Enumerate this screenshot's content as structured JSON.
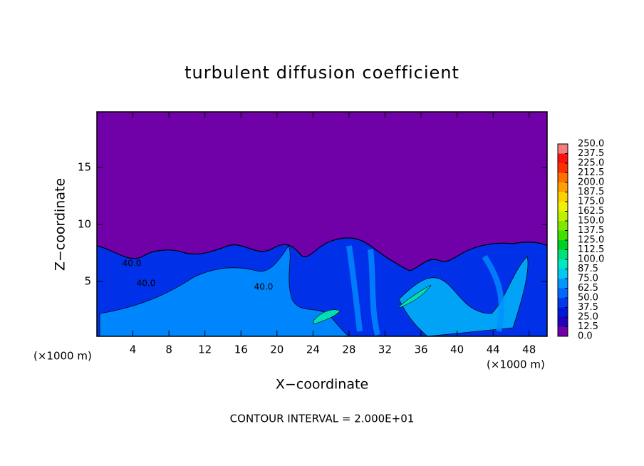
{
  "chart_data": {
    "type": "contour",
    "title": "turbulent diffusion coefficient",
    "x_label": "X−coordinate",
    "y_label": "Z−coordinate",
    "x_unit_left": "(×1000 m)",
    "x_unit_right": "(×1000 m)",
    "footnote": "CONTOUR INTERVAL = 2.000E+01",
    "xlim": [
      0,
      50
    ],
    "ylim": [
      0,
      20
    ],
    "xticks": [
      4,
      8,
      12,
      16,
      20,
      24,
      28,
      32,
      36,
      40,
      44,
      48
    ],
    "yticks": [
      5,
      10,
      15
    ],
    "contour_labels": [
      "40.0",
      "40.0",
      "40.0"
    ],
    "colorbar": {
      "levels": [
        {
          "value": 0,
          "label": "0.0"
        },
        {
          "value": 12.5,
          "label": "12.5"
        },
        {
          "value": 25,
          "label": "25.0"
        },
        {
          "value": 37.5,
          "label": "37.5"
        },
        {
          "value": 50,
          "label": "50.0"
        },
        {
          "value": 62.5,
          "label": "62.5"
        },
        {
          "value": 75,
          "label": "75.0"
        },
        {
          "value": 87.5,
          "label": "87.5"
        },
        {
          "value": 100,
          "label": "100.0"
        },
        {
          "value": 112.5,
          "label": "112.5"
        },
        {
          "value": 125,
          "label": "125.0"
        },
        {
          "value": 137.5,
          "label": "137.5"
        },
        {
          "value": 150,
          "label": "150.0"
        },
        {
          "value": 162.5,
          "label": "162.5"
        },
        {
          "value": 175,
          "label": "175.0"
        },
        {
          "value": 187.5,
          "label": "187.5"
        },
        {
          "value": 200,
          "label": "200.0"
        },
        {
          "value": 212.5,
          "label": "212.5"
        },
        {
          "value": 225,
          "label": "225.0"
        },
        {
          "value": 237.5,
          "label": "237.5"
        },
        {
          "value": 250,
          "label": "250.0"
        }
      ],
      "colors": [
        "#7000a8",
        "#2000b8",
        "#0018d8",
        "#0038f0",
        "#0068ff",
        "#0098ff",
        "#00c8f0",
        "#00e8c0",
        "#00e078",
        "#00d020",
        "#40e000",
        "#80e800",
        "#c0f000",
        "#f0f000",
        "#ffd000",
        "#ffa000",
        "#ff7000",
        "#ff3000",
        "#ff1010",
        "#f08080"
      ]
    }
  }
}
